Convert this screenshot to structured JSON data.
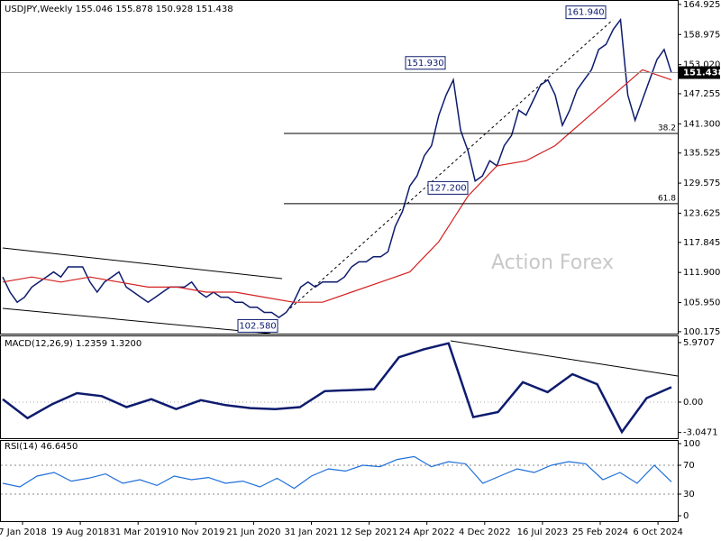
{
  "chart_data": [
    {
      "type": "line",
      "title": "USDJPY,Weekly  155.046 155.878 150.928 151.438",
      "series": [
        {
          "name": "price",
          "color": "#0d1b6e",
          "values": [
            111,
            108,
            106,
            107,
            109,
            110,
            111,
            112,
            111,
            113,
            113,
            113,
            110,
            108,
            110,
            111,
            112,
            109,
            108,
            107,
            106,
            107,
            108,
            109,
            109,
            109,
            110,
            108,
            107,
            108,
            107,
            107,
            106,
            106,
            105,
            105,
            104,
            104,
            103,
            104,
            106,
            109,
            110,
            109,
            110,
            110,
            110,
            111,
            113,
            114,
            114,
            115,
            115,
            116,
            121,
            124,
            129,
            131,
            135,
            137,
            143,
            147,
            150,
            140,
            136,
            130,
            131,
            134,
            133,
            137,
            139,
            144,
            143,
            146,
            149,
            150,
            147,
            141,
            144,
            148,
            150,
            152,
            156,
            157,
            160,
            161.9,
            147,
            142,
            146,
            150,
            154,
            156,
            151.4
          ]
        },
        {
          "name": "ma",
          "color": "#d42020",
          "values": [
            110,
            111,
            110,
            111,
            110,
            109,
            109,
            108,
            108,
            107,
            106,
            106,
            108,
            110,
            112,
            118,
            127,
            133,
            134,
            137,
            142,
            147,
            152,
            150
          ]
        }
      ],
      "ylim": [
        99.8,
        165.8
      ],
      "yticks": [
        164.925,
        158.975,
        {
          "value": 153.02,
          "label": "153.020"
        },
        147.255,
        {
          "value": 141.3,
          "label": "141.300"
        },
        135.525,
        129.575,
        123.625,
        117.845,
        {
          "value": 111.9,
          "label": "111.900"
        },
        {
          "value": 105.95,
          "label": "105.950"
        },
        100.175
      ],
      "current": {
        "value": 151.438,
        "label": "151.438"
      },
      "annotations": [
        {
          "value": 161.94,
          "label": "161.940"
        },
        {
          "value": 151.93,
          "label": "151.930"
        },
        {
          "value": 127.2,
          "label": "127.200"
        },
        {
          "value": 102.58,
          "label": "102.580"
        }
      ],
      "levels": [
        {
          "ratio": 38.2,
          "price": 139.4
        },
        {
          "ratio": 61.8,
          "price": 125.5
        }
      ],
      "watermark": "Action Forex",
      "x_labels": [
        "7 Jan 2018",
        "19 Aug 2018",
        "31 Mar 2019",
        "10 Nov 2019",
        "21 Jun 2020",
        "31 Jan 2021",
        "12 Sep 2021",
        "24 Apr 2022",
        "4 Dec 2022",
        "16 Jul 2023",
        "25 Feb 2024",
        "6 Oct 2024"
      ]
    },
    {
      "type": "line",
      "title": "MACD(12,26,9) 1.2359 1.3200",
      "series": [
        {
          "name": "macd",
          "color": "#0d1b6e",
          "values": [
            0.3,
            -1.6,
            -0.2,
            0.9,
            0.6,
            -0.5,
            0.3,
            -0.7,
            0.2,
            -0.3,
            -0.6,
            -0.7,
            -0.5,
            1.1,
            1.2,
            1.3,
            4.5,
            5.3,
            5.9,
            -1.5,
            -1.0,
            2.0,
            1.0,
            2.8,
            1.8,
            -3.0,
            0.4,
            1.5
          ]
        }
      ],
      "ylim": [
        -3.62,
        6.69
      ],
      "yticks": [
        5.9707,
        {
          "value": 0,
          "label": "0.00"
        },
        -3.0471
      ]
    },
    {
      "type": "line",
      "title": "RSI(14) 46.6450",
      "series": [
        {
          "name": "rsi",
          "color": "#1e6fd9",
          "values": [
            45,
            40,
            55,
            60,
            48,
            52,
            58,
            45,
            50,
            42,
            55,
            50,
            53,
            45,
            48,
            40,
            52,
            38,
            55,
            65,
            62,
            70,
            68,
            78,
            82,
            68,
            75,
            72,
            45,
            55,
            65,
            60,
            70,
            75,
            72,
            50,
            60,
            45,
            70,
            47
          ]
        }
      ],
      "ylim": [
        -7.5,
        105
      ],
      "yticks": [
        100,
        70,
        30,
        0
      ]
    }
  ]
}
